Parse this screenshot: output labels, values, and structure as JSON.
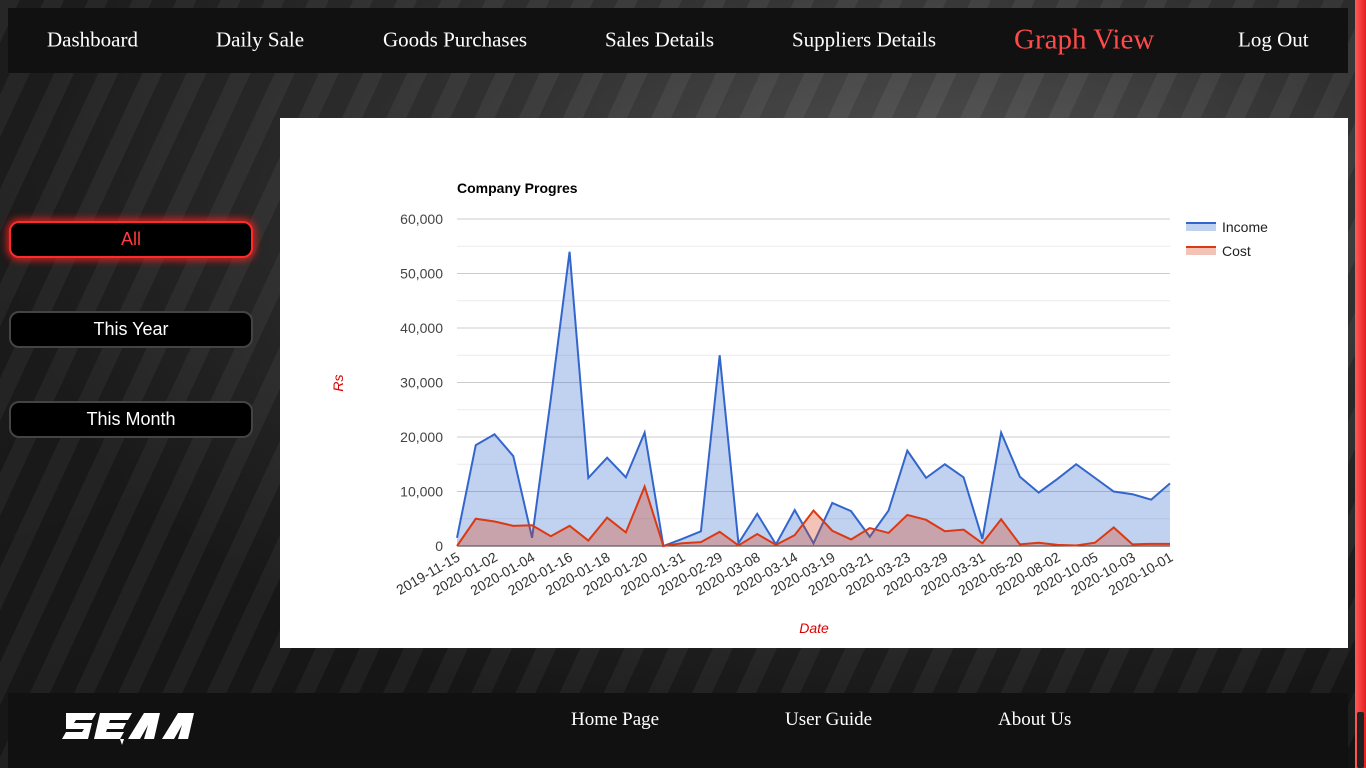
{
  "nav": {
    "items": [
      {
        "label": "Dashboard",
        "active": false
      },
      {
        "label": "Daily Sale",
        "active": false
      },
      {
        "label": "Goods Purchases",
        "active": false
      },
      {
        "label": "Sales Details",
        "active": false
      },
      {
        "label": "Suppliers Details",
        "active": false
      },
      {
        "label": "Graph View",
        "active": true
      },
      {
        "label": "Log Out",
        "active": false
      }
    ]
  },
  "filters": {
    "buttons": [
      {
        "label": "All",
        "active": true
      },
      {
        "label": "This Year",
        "active": false
      },
      {
        "label": "This Month",
        "active": false
      }
    ]
  },
  "footer": {
    "logo_text": "SEAA",
    "links": [
      {
        "label": "Home Page"
      },
      {
        "label": "User Guide"
      },
      {
        "label": "About Us"
      }
    ]
  },
  "colors": {
    "accent": "#ff4a4a",
    "income": "#3366cc",
    "cost": "#dc3912"
  },
  "chart_data": {
    "type": "area",
    "title": "Company Progres",
    "xlabel": "Date",
    "ylabel": "Rs",
    "ylim": [
      0,
      60000
    ],
    "yticks": [
      0,
      10000,
      20000,
      30000,
      40000,
      50000,
      60000
    ],
    "ytick_labels": [
      "0",
      "10,000",
      "20,000",
      "30,000",
      "40,000",
      "50,000",
      "60,000"
    ],
    "xtick_labels": [
      "2019-11-15",
      "2020-01-02",
      "2020-01-04",
      "2020-01-16",
      "2020-01-18",
      "2020-01-20",
      "2020-01-31",
      "2020-02-29",
      "2020-03-08",
      "2020-03-14",
      "2020-03-19",
      "2020-03-21",
      "2020-03-23",
      "2020-03-29",
      "2020-03-31",
      "2020-05-20",
      "2020-08-02",
      "2020-10-05",
      "2020-10-03",
      "2020-10-01"
    ],
    "legend": "right",
    "grid": true,
    "series": [
      {
        "name": "Income",
        "values": [
          1500,
          18500,
          20500,
          16500,
          1500,
          27000,
          54000,
          12500,
          16200,
          12600,
          20800,
          0,
          1300,
          2700,
          35000,
          500,
          5900,
          300,
          6600,
          500,
          7900,
          6400,
          1700,
          6500,
          17500,
          12500,
          15000,
          12600,
          1300,
          20800,
          12700,
          9800,
          12300,
          15000,
          12500,
          10000,
          9500,
          8500,
          11500
        ]
      },
      {
        "name": "Cost",
        "values": [
          0,
          5000,
          4500,
          3700,
          3800,
          1800,
          3700,
          1000,
          5200,
          2500,
          10900,
          0,
          500,
          700,
          2600,
          100,
          2200,
          200,
          2000,
          6500,
          2800,
          1200,
          3300,
          2400,
          5700,
          4800,
          2700,
          3000,
          500,
          4900,
          300,
          600,
          200,
          100,
          600,
          3400,
          300,
          400,
          400
        ]
      }
    ]
  }
}
